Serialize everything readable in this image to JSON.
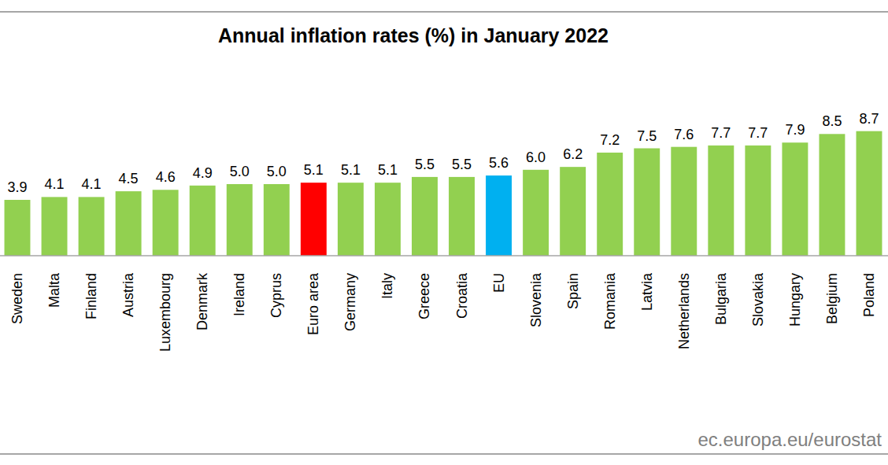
{
  "chart_data": {
    "type": "bar",
    "title": "Annual inflation rates (%) in January 2022",
    "categories": [
      "Sweden",
      "Malta",
      "Finland",
      "Austria",
      "Luxembourg",
      "Denmark",
      "Ireland",
      "Cyprus",
      "Euro area",
      "Germany",
      "Italy",
      "Greece",
      "Croatia",
      "EU",
      "Slovenia",
      "Spain",
      "Romania",
      "Latvia",
      "Netherlands",
      "Bulgaria",
      "Slovakia",
      "Hungary",
      "Belgium",
      "Poland"
    ],
    "values": [
      3.9,
      4.1,
      4.1,
      4.5,
      4.6,
      4.9,
      5.0,
      5.0,
      5.1,
      5.1,
      5.1,
      5.5,
      5.5,
      5.6,
      6.0,
      6.2,
      7.2,
      7.5,
      7.6,
      7.7,
      7.7,
      7.9,
      8.5,
      8.7
    ],
    "value_labels": [
      "3.9",
      "4.1",
      "4.1",
      "4.5",
      "4.6",
      "4.9",
      "5.0",
      "5.0",
      "5.1",
      "5.1",
      "5.1",
      "5.5",
      "5.5",
      "5.6",
      "6.0",
      "6.2",
      "7.2",
      "7.5",
      "7.6",
      "7.7",
      "7.7",
      "7.9",
      "8.5",
      "8.7"
    ],
    "colors": [
      "#92d050",
      "#92d050",
      "#92d050",
      "#92d050",
      "#92d050",
      "#92d050",
      "#92d050",
      "#92d050",
      "#ff0000",
      "#92d050",
      "#92d050",
      "#92d050",
      "#92d050",
      "#00b0f0",
      "#92d050",
      "#92d050",
      "#92d050",
      "#92d050",
      "#92d050",
      "#92d050",
      "#92d050",
      "#92d050",
      "#92d050",
      "#92d050"
    ],
    "ylim": [
      0,
      10
    ],
    "yticks": [],
    "grid": false,
    "data_labels": true,
    "tick_labels": "x",
    "source": "ec.europa.eu/eurostat"
  }
}
